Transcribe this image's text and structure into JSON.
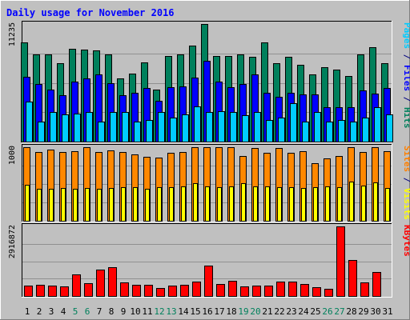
{
  "chart_data": {
    "type": "bar",
    "title": "Daily usage for November 2016",
    "categories": [
      "1",
      "2",
      "3",
      "4",
      "5",
      "6",
      "7",
      "8",
      "9",
      "10",
      "11",
      "12",
      "13",
      "14",
      "15",
      "16",
      "17",
      "18",
      "19",
      "20",
      "21",
      "22",
      "23",
      "24",
      "25",
      "26",
      "27",
      "28",
      "29",
      "30",
      "31"
    ],
    "weekend_days": [
      "5",
      "6",
      "12",
      "13",
      "19",
      "20",
      "26",
      "27"
    ],
    "panels": [
      {
        "id": "hits",
        "y_tick_label": "11235",
        "ymax": 11235,
        "right_labels": [
          {
            "text": "Pages",
            "color": "#00ccff"
          },
          {
            "text": " / ",
            "color": "#000080"
          },
          {
            "text": "Files",
            "color": "#0000ff"
          },
          {
            "text": " / ",
            "color": "#000080"
          },
          {
            "text": "Hits",
            "color": "#00805c"
          }
        ],
        "series": [
          {
            "name": "Hits",
            "color": "#00805c",
            "values": [
              9500,
              8300,
              8300,
              7500,
              8900,
              8800,
              8700,
              8300,
              6000,
              6500,
              7600,
              5000,
              8200,
              8300,
              9200,
              11235,
              8200,
              8200,
              8300,
              8100,
              9500,
              7500,
              8100,
              7300,
              6400,
              7100,
              6900,
              6300,
              8300,
              9000,
              7500
            ]
          },
          {
            "name": "Files",
            "color": "#0000ff",
            "values": [
              6200,
              5500,
              5000,
              4400,
              5700,
              6000,
              6400,
              5600,
              4400,
              4700,
              5100,
              3900,
              5200,
              5300,
              6100,
              7700,
              5700,
              5200,
              5500,
              6400,
              4700,
              4300,
              4700,
              4500,
              4500,
              3300,
              3300,
              3300,
              4900,
              4600,
              5100
            ]
          },
          {
            "name": "Pages",
            "color": "#00ccff",
            "values": [
              3800,
              1900,
              2800,
              2600,
              2700,
              2800,
              1900,
              2800,
              2800,
              1900,
              2100,
              2800,
              2300,
              2600,
              3400,
              2800,
              2900,
              2800,
              2500,
              2800,
              2100,
              2300,
              3700,
              1900,
              2800,
              1900,
              2100,
              1900,
              2300,
              3300,
              2600
            ]
          }
        ]
      },
      {
        "id": "visits",
        "y_tick_label": "1000",
        "ymax": 1000,
        "right_labels": [
          {
            "text": "Sites",
            "color": "#ff8000"
          },
          {
            "text": " / ",
            "color": "#000080"
          },
          {
            "text": "Visits",
            "color": "#ffff00"
          }
        ],
        "series": [
          {
            "name": "Visits",
            "color": "#ff8800",
            "values": [
              1000,
              940,
              970,
              940,
              950,
              1000,
              940,
              960,
              940,
              900,
              870,
              860,
              920,
              930,
              1000,
              1000,
              1000,
              1000,
              880,
              990,
              920,
              990,
              920,
              950,
              780,
              850,
              880,
              1000,
              930,
              1000,
              950
            ]
          },
          {
            "name": "Sites",
            "color": "#ffff00",
            "values": [
              490,
              440,
              430,
              450,
              440,
              450,
              440,
              450,
              460,
              460,
              440,
              460,
              460,
              470,
              510,
              470,
              460,
              470,
              510,
              470,
              470,
              460,
              460,
              450,
              460,
              470,
              460,
              530,
              480,
              520,
              450
            ]
          }
        ]
      },
      {
        "id": "kbytes",
        "y_tick_label": "2916872",
        "ymax": 2916872,
        "right_labels": [
          {
            "text": "KBytes",
            "color": "#ff0000"
          }
        ],
        "series": [
          {
            "name": "KBytes",
            "color": "#ff0000",
            "values": [
              430000,
              480000,
              430000,
              400000,
              900000,
              530000,
              1120000,
              1200000,
              570000,
              470000,
              460000,
              320000,
              450000,
              480000,
              600000,
              1280000,
              510000,
              630000,
              390000,
              450000,
              450000,
              590000,
              590000,
              500000,
              370000,
              290000,
              2916872,
              1510000,
              570000,
              1000000,
              0
            ]
          }
        ]
      }
    ],
    "grid": true
  }
}
